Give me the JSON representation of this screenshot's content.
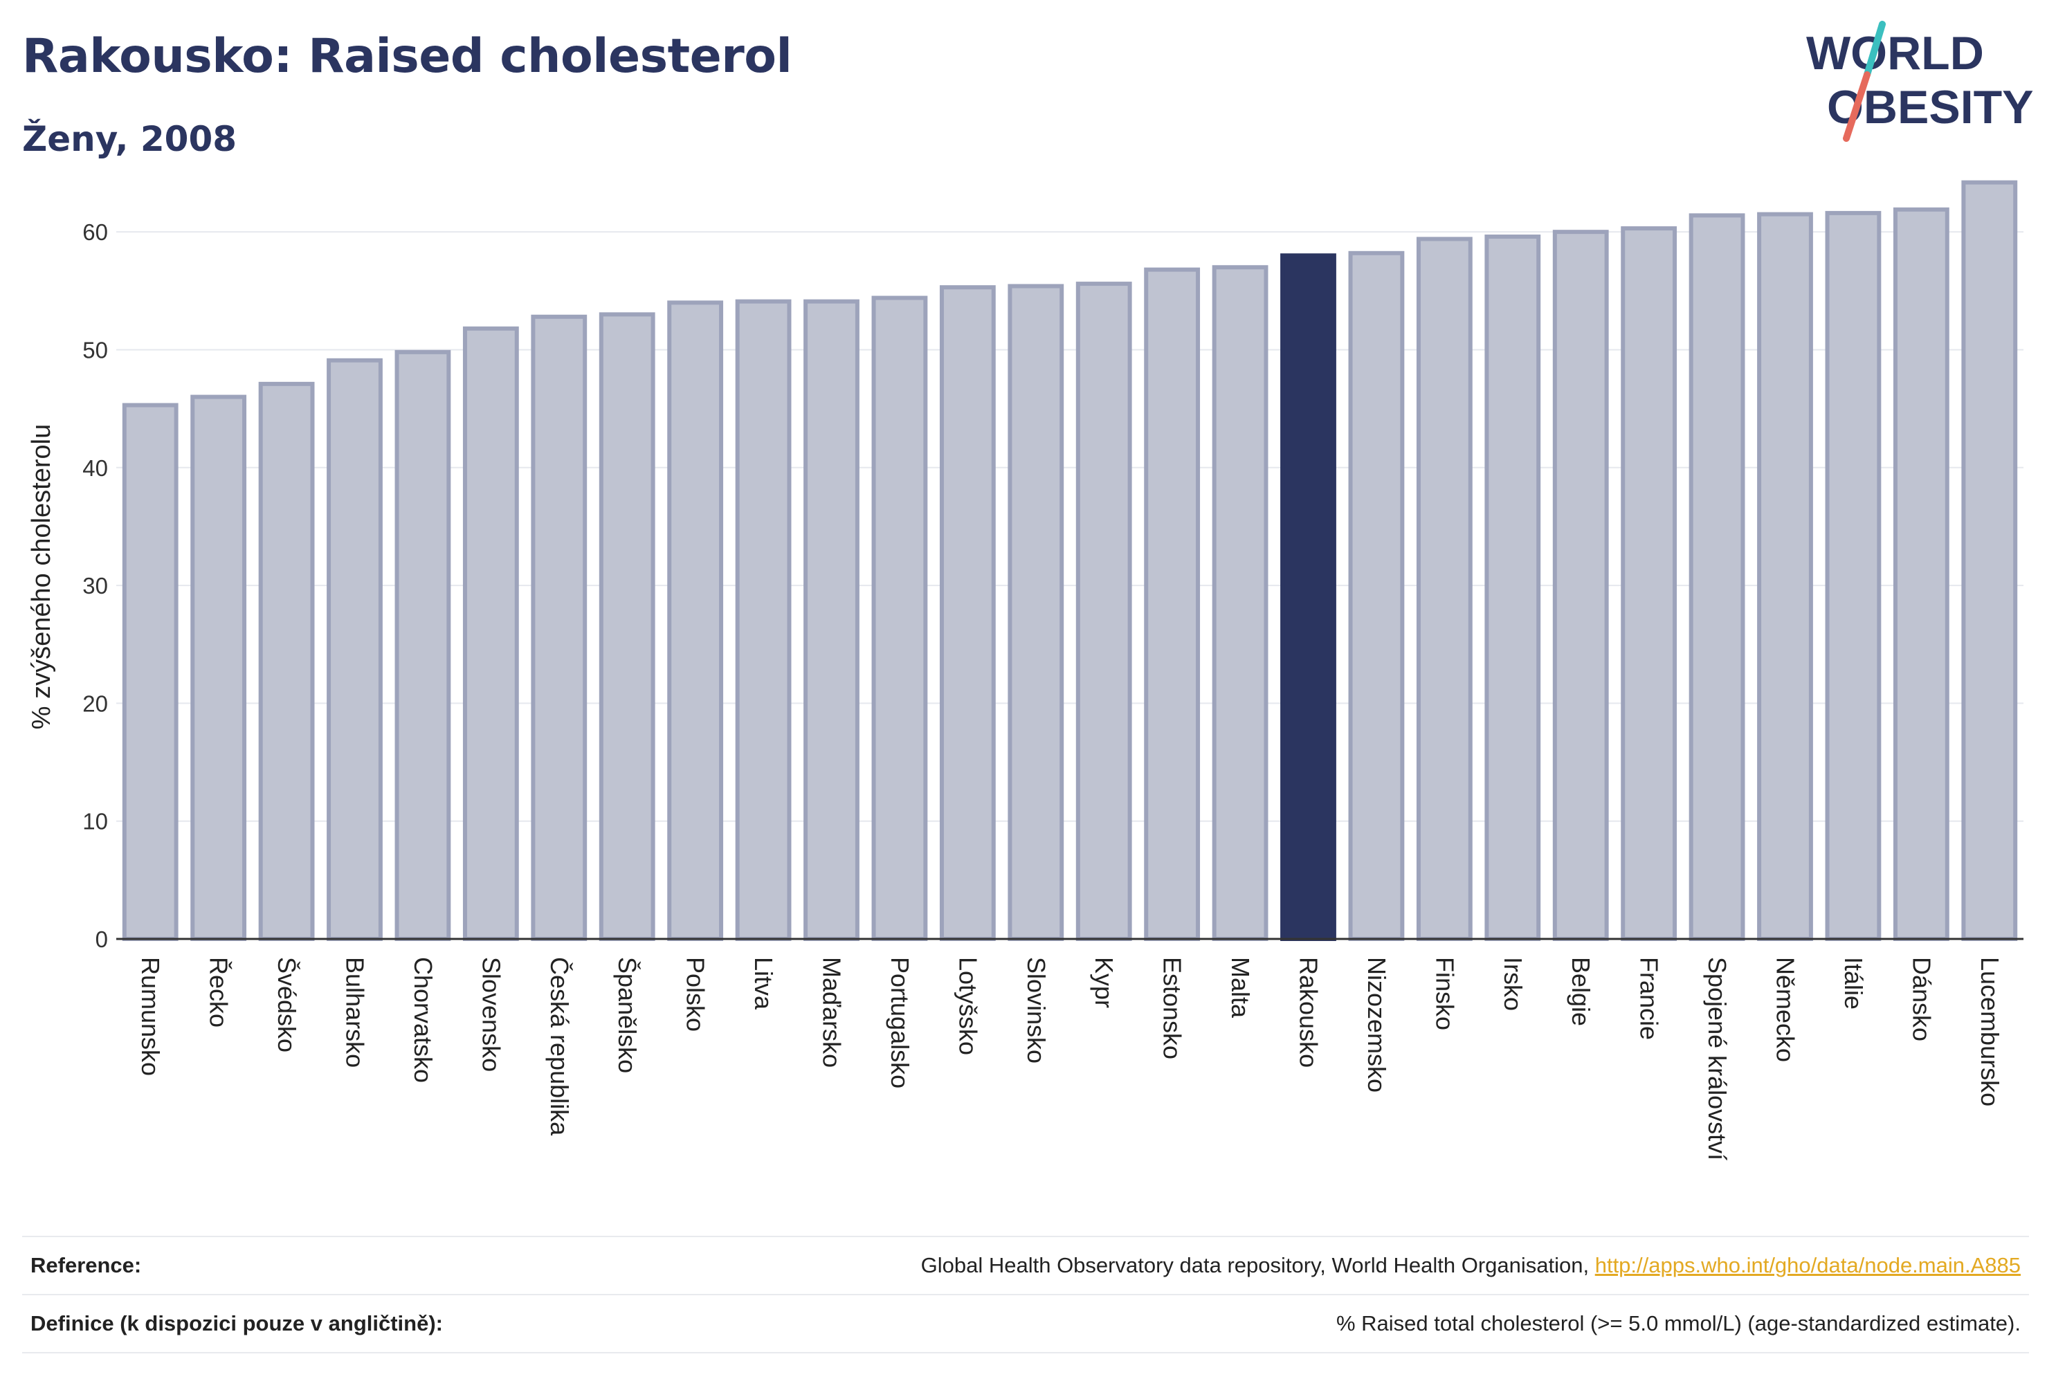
{
  "header": {
    "title": "Rakousko: Raised cholesterol",
    "subtitle": "Ženy, 2008"
  },
  "logo": {
    "line1": "WORLD",
    "line2": "OBESITY"
  },
  "colors": {
    "bar": "#bfc3d1",
    "bar_border": "#9da3bb",
    "highlight": "#2b3560",
    "text": "#2b3560",
    "grid": "#e6e8ee",
    "link": "#e3a922",
    "logo_slash_teal": "#3bbfbf",
    "logo_slash_red": "#e66a5c"
  },
  "chart_data": {
    "type": "bar",
    "ylabel": "% zvýšeného cholesterolu",
    "ylim": [
      0,
      65
    ],
    "yticks": [
      0,
      10,
      20,
      30,
      40,
      50,
      60
    ],
    "highlight": "Rakousko",
    "grid": true,
    "categories": [
      "Rumunsko",
      "Řecko",
      "Švédsko",
      "Bulharsko",
      "Chorvatsko",
      "Slovensko",
      "Česká republika",
      "Španělsko",
      "Polsko",
      "Litva",
      "Maďarsko",
      "Portugalsko",
      "Lotyšsko",
      "Slovinsko",
      "Kypr",
      "Estonsko",
      "Malta",
      "Rakousko",
      "Nizozemsko",
      "Finsko",
      "Irsko",
      "Belgie",
      "Francie",
      "Spojené království",
      "Německo",
      "Itálie",
      "Dánsko",
      "Lucembursko"
    ],
    "values": [
      45.3,
      46.0,
      47.1,
      49.1,
      49.8,
      51.8,
      52.8,
      53.0,
      54.0,
      54.1,
      54.1,
      54.4,
      55.3,
      55.4,
      55.6,
      56.8,
      57.0,
      58.0,
      58.2,
      59.4,
      59.6,
      60.0,
      60.3,
      61.4,
      61.5,
      61.6,
      61.9,
      64.2
    ]
  },
  "footer": {
    "reference_label": "Reference:",
    "reference_text": "Global Health Observatory data repository, World Health Organisation, ",
    "reference_link": "http://apps.who.int/gho/data/node.main.A885",
    "definition_label": "Definice (k dispozici pouze v angličtině):",
    "definition_text": "% Raised total cholesterol (>= 5.0 mmol/L) (age-standardized estimate)."
  }
}
